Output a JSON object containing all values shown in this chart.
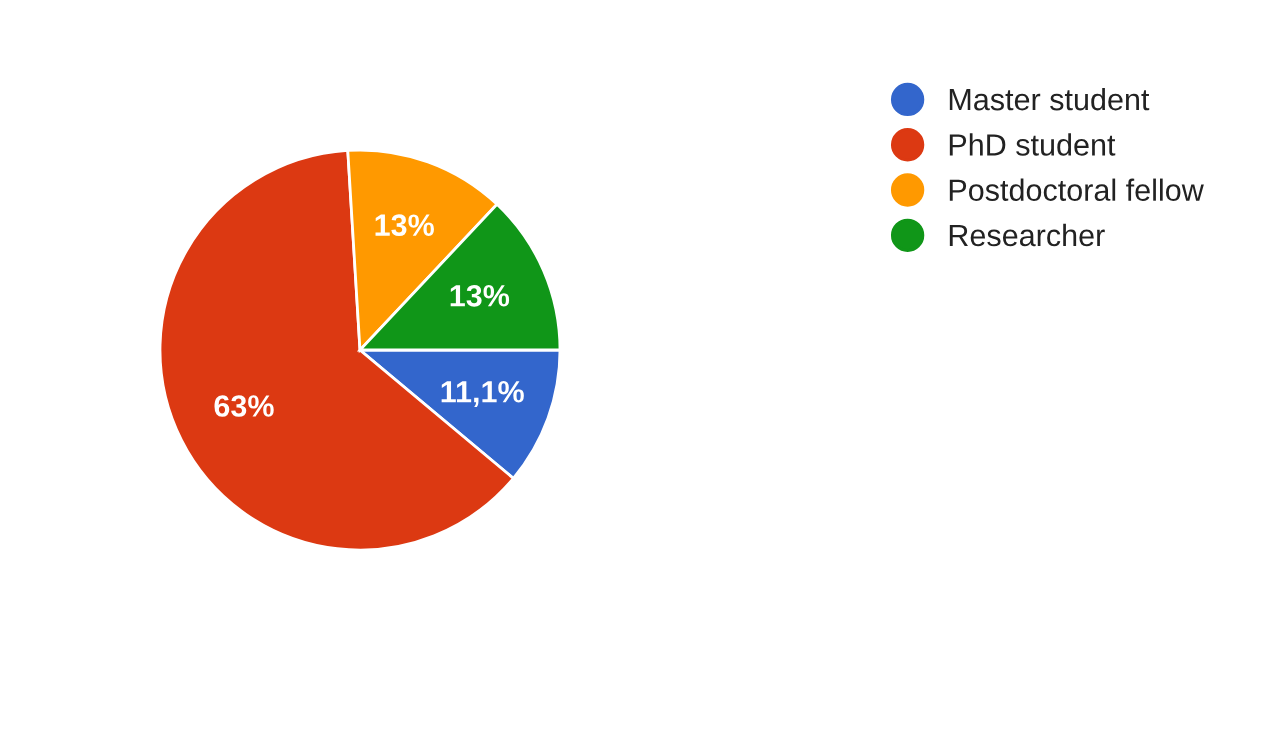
{
  "chart_data": {
    "type": "pie",
    "categories": [
      "Master student",
      "PhD student",
      "Postdoctoral fellow",
      "Researcher"
    ],
    "values": [
      11.1,
      63,
      13,
      13
    ],
    "value_labels": [
      "11,1%",
      "63%",
      "13%",
      "13%"
    ],
    "colors": [
      "#3366cc",
      "#dc3912",
      "#ff9900",
      "#109618"
    ],
    "legend": "right"
  }
}
